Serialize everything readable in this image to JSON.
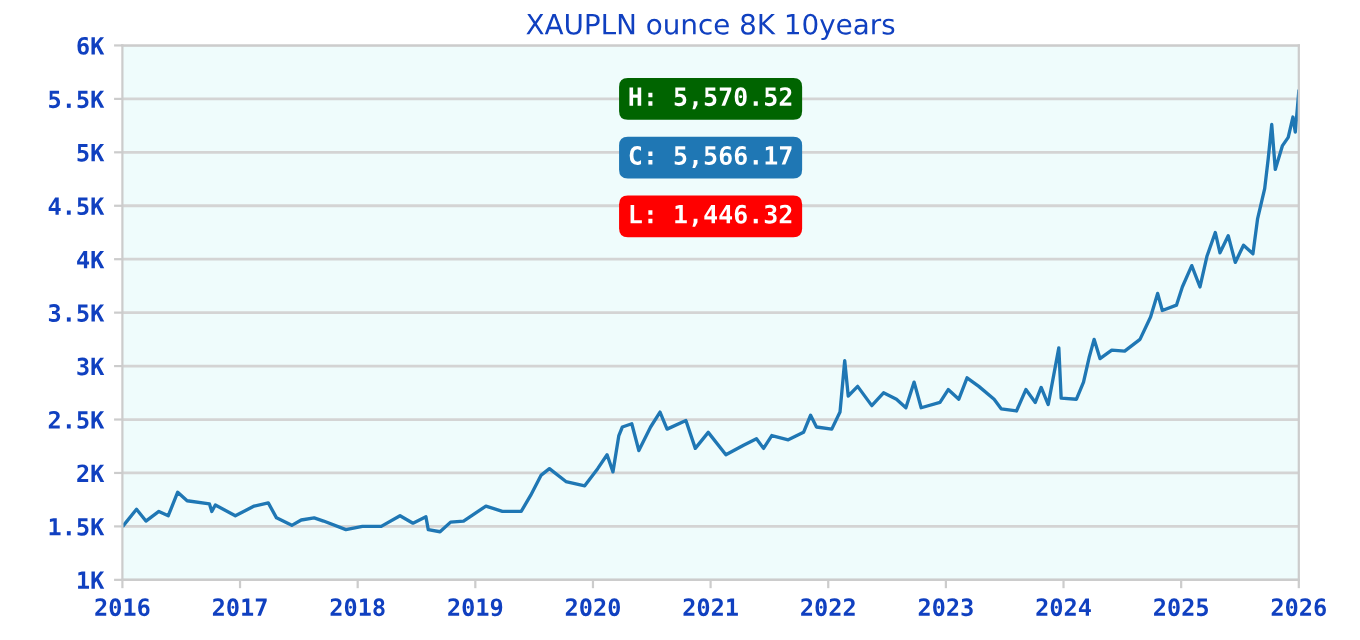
{
  "chart_data": {
    "type": "line",
    "title": "XAUPLN ounce 8K 10years",
    "x": [
      2016.01,
      2016.12,
      2016.2,
      2016.31,
      2016.39,
      2016.47,
      2016.55,
      2016.74,
      2016.76,
      2016.79,
      2016.96,
      2017.12,
      2017.24,
      2017.31,
      2017.44,
      2017.52,
      2017.63,
      2017.71,
      2017.9,
      2018.04,
      2018.2,
      2018.36,
      2018.47,
      2018.58,
      2018.6,
      2018.7,
      2018.79,
      2018.9,
      2019.09,
      2019.23,
      2019.39,
      2019.47,
      2019.56,
      2019.63,
      2019.77,
      2019.93,
      2020.04,
      2020.12,
      2020.17,
      2020.22,
      2020.25,
      2020.33,
      2020.39,
      2020.49,
      2020.57,
      2020.63,
      2020.79,
      2020.87,
      2020.98,
      2021.13,
      2021.28,
      2021.39,
      2021.45,
      2021.52,
      2021.66,
      2021.79,
      2021.85,
      2021.9,
      2022.03,
      2022.1,
      2022.14,
      2022.17,
      2022.25,
      2022.37,
      2022.47,
      2022.58,
      2022.66,
      2022.73,
      2022.79,
      2022.95,
      2023.02,
      2023.11,
      2023.18,
      2023.28,
      2023.41,
      2023.47,
      2023.6,
      2023.68,
      2023.76,
      2023.81,
      2023.87,
      2023.96,
      2023.98,
      2024.11,
      2024.17,
      2024.22,
      2024.26,
      2024.31,
      2024.41,
      2024.52,
      2024.65,
      2024.74,
      2024.8,
      2024.84,
      2024.96,
      2025.01,
      2025.09,
      2025.16,
      2025.22,
      2025.29,
      2025.33,
      2025.4,
      2025.46,
      2025.53,
      2025.61,
      2025.65,
      2025.71,
      2025.74,
      2025.77,
      2025.8,
      2025.86,
      2025.91,
      2025.95,
      2025.97,
      2025.99,
      2026.0
    ],
    "series": [
      {
        "color": "#1f77b4",
        "values": [
          1.51,
          1.66,
          1.55,
          1.64,
          1.6,
          1.82,
          1.74,
          1.71,
          1.64,
          1.7,
          1.6,
          1.69,
          1.72,
          1.58,
          1.51,
          1.56,
          1.58,
          1.55,
          1.47,
          1.5,
          1.5,
          1.6,
          1.53,
          1.59,
          1.47,
          1.45,
          1.54,
          1.55,
          1.69,
          1.64,
          1.64,
          1.79,
          1.98,
          2.04,
          1.92,
          1.88,
          2.04,
          2.17,
          2.01,
          2.35,
          2.43,
          2.46,
          2.21,
          2.43,
          2.57,
          2.41,
          2.49,
          2.23,
          2.38,
          2.17,
          2.26,
          2.32,
          2.23,
          2.35,
          2.31,
          2.38,
          2.54,
          2.43,
          2.41,
          2.57,
          3.05,
          2.72,
          2.81,
          2.63,
          2.75,
          2.69,
          2.61,
          2.85,
          2.61,
          2.66,
          2.78,
          2.69,
          2.89,
          2.81,
          2.69,
          2.6,
          2.58,
          2.78,
          2.66,
          2.8,
          2.64,
          3.17,
          2.7,
          2.69,
          2.85,
          3.09,
          3.25,
          3.07,
          3.15,
          3.14,
          3.25,
          3.46,
          3.68,
          3.52,
          3.57,
          3.74,
          3.94,
          3.74,
          4.03,
          4.25,
          4.06,
          4.22,
          3.97,
          4.13,
          4.05,
          4.38,
          4.66,
          4.94,
          5.26,
          4.84,
          5.06,
          5.14,
          5.33,
          5.19,
          5.44,
          5.57
        ]
      }
    ],
    "xlim": [
      2016.0,
      2026.0
    ],
    "xticks": [
      2016,
      2017,
      2018,
      2019,
      2020,
      2021,
      2022,
      2023,
      2024,
      2025,
      2026
    ],
    "ylim": [
      1,
      6
    ],
    "yticks": [
      {
        "value": 1,
        "label": "1K"
      },
      {
        "value": 1.5,
        "label": "1.5K"
      },
      {
        "value": 2,
        "label": "2K"
      },
      {
        "value": 2.5,
        "label": "2.5K"
      },
      {
        "value": 3,
        "label": "3K"
      },
      {
        "value": 3.5,
        "label": "3.5K"
      },
      {
        "value": 4,
        "label": "4K"
      },
      {
        "value": 4.5,
        "label": "4.5K"
      },
      {
        "value": 5,
        "label": "5K"
      },
      {
        "value": 5.5,
        "label": "5.5K"
      },
      {
        "value": 6,
        "label": "6K"
      }
    ],
    "grid": "y",
    "annotations": [
      "H: 5,570.52",
      "C: 5,566.17",
      "L: 1,446.32"
    ]
  }
}
